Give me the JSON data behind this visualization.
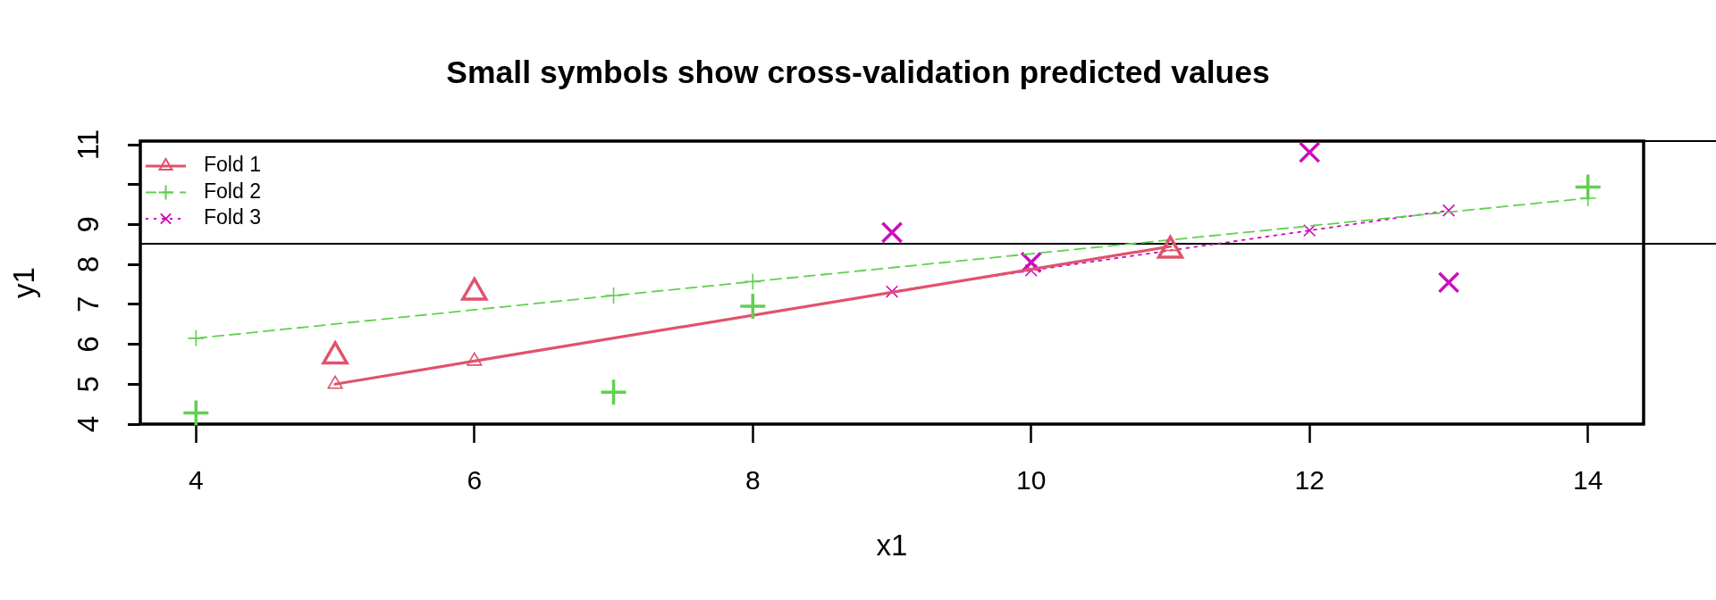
{
  "chart_data": {
    "type": "line",
    "title": "Small symbols show cross-validation predicted values",
    "xlabel": "x1",
    "ylabel": "y1",
    "xlim": [
      3.6,
      14.4
    ],
    "xticks": [
      4,
      6,
      8,
      10,
      12,
      14
    ],
    "ylim": [
      4,
      11.09
    ],
    "yticks": [
      4,
      5,
      6,
      7,
      8,
      9,
      {
        "value": 10,
        "label": null
      },
      11
    ],
    "legend": "top left",
    "ref_lines": [
      {
        "axis": "y",
        "value": 8.52
      },
      {
        "axis": "y",
        "value": 11.09
      }
    ],
    "series": [
      {
        "name": "Fold 1",
        "color": "#df536b",
        "marker": "triangle",
        "line_style": "solid",
        "x": [
          5,
          6,
          11
        ],
        "values": [
          5.0,
          5.58,
          8.45
        ]
      },
      {
        "type": "scatter",
        "color": "#df536b",
        "marker": "triangle",
        "x": [
          5,
          6,
          11
        ],
        "values": [
          5.7,
          7.3,
          8.35
        ]
      },
      {
        "name": "Fold 2",
        "color": "#61d04f",
        "marker": "cross",
        "line_style": "dashed",
        "x": [
          4,
          7,
          8,
          14
        ],
        "values": [
          6.15,
          7.22,
          7.57,
          9.66
        ]
      },
      {
        "type": "scatter",
        "color": "#61d04f",
        "marker": "cross",
        "x": [
          4,
          7,
          8,
          14
        ],
        "values": [
          4.28,
          4.8,
          6.95,
          9.94
        ]
      },
      {
        "name": "Fold 3",
        "color": "#cd0bbc",
        "marker": "cross",
        "line_style": "dotted",
        "x": [
          9,
          10,
          12,
          13
        ],
        "values": [
          7.32,
          7.85,
          8.85,
          9.35
        ]
      },
      {
        "type": "scatter",
        "color": "#cd0bbc",
        "marker": "cross",
        "x": [
          9,
          10,
          12,
          13
        ],
        "values": [
          8.8,
          8.05,
          10.81,
          7.55
        ]
      }
    ]
  }
}
